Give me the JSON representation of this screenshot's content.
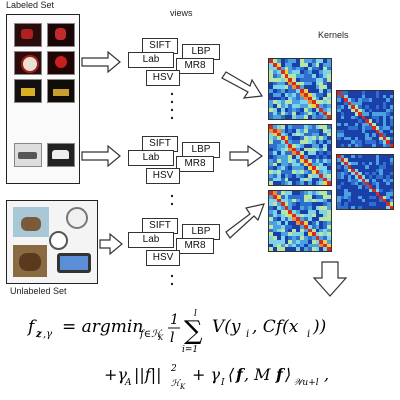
{
  "labels": {
    "labeled_set": "Labeled Set",
    "unlabeled_set": "Unlabeled Set",
    "views": "views",
    "kernels": "Kernels"
  },
  "features": [
    "SIFT",
    "LBP",
    "Lab",
    "MR8",
    "HSV"
  ],
  "formula": {
    "line1": "f𝐳,γ = argminf∈ℋK (1/l) Σi=1..l V(yi, Cf(xi))",
    "line2": "+γA||f||²ℋK + γI⟨𝐟, M𝐟⟩𝒲u+l,"
  },
  "colors": {
    "kernel_low": "#1a3fa8",
    "kernel_mid": "#7fd3e8",
    "kernel_high": "#d62a1e",
    "border": "#222222"
  }
}
